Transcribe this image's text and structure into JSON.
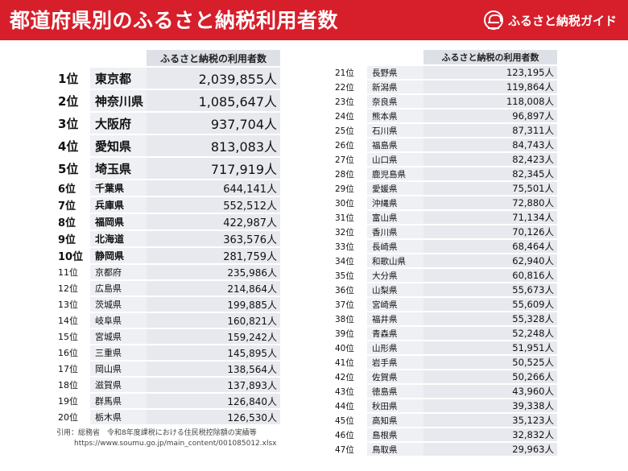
{
  "header": {
    "title": "都道府県別のふるさと納税利用者数",
    "brand": "ふるさと納税ガイド"
  },
  "table_left": {
    "column_header": "ふるさと納税の利用者数",
    "rows": [
      {
        "rank": "1位",
        "pref": "東京都",
        "value": "2,039,855人"
      },
      {
        "rank": "2位",
        "pref": "神奈川県",
        "value": "1,085,647人"
      },
      {
        "rank": "3位",
        "pref": "大阪府",
        "value": "937,704人"
      },
      {
        "rank": "4位",
        "pref": "愛知県",
        "value": "813,083人"
      },
      {
        "rank": "5位",
        "pref": "埼玉県",
        "value": "717,919人"
      },
      {
        "rank": "6位",
        "pref": "千葉県",
        "value": "644,141人"
      },
      {
        "rank": "7位",
        "pref": "兵庫県",
        "value": "552,512人"
      },
      {
        "rank": "8位",
        "pref": "福岡県",
        "value": "422,987人"
      },
      {
        "rank": "9位",
        "pref": "北海道",
        "value": "363,576人"
      },
      {
        "rank": "10位",
        "pref": "静岡県",
        "value": "281,759人"
      },
      {
        "rank": "11位",
        "pref": "京都府",
        "value": "235,986人"
      },
      {
        "rank": "12位",
        "pref": "広島県",
        "value": "214,864人"
      },
      {
        "rank": "13位",
        "pref": "茨城県",
        "value": "199,885人"
      },
      {
        "rank": "14位",
        "pref": "岐阜県",
        "value": "160,821人"
      },
      {
        "rank": "15位",
        "pref": "宮城県",
        "value": "159,242人"
      },
      {
        "rank": "16位",
        "pref": "三重県",
        "value": "145,895人"
      },
      {
        "rank": "17位",
        "pref": "岡山県",
        "value": "138,564人"
      },
      {
        "rank": "18位",
        "pref": "滋賀県",
        "value": "137,893人"
      },
      {
        "rank": "19位",
        "pref": "群馬県",
        "value": "126,840人"
      },
      {
        "rank": "20位",
        "pref": "栃木県",
        "value": "126,530人"
      }
    ]
  },
  "table_right": {
    "column_header": "ふるさと納税の利用者数",
    "rows": [
      {
        "rank": "21位",
        "pref": "長野県",
        "value": "123,195人"
      },
      {
        "rank": "22位",
        "pref": "新潟県",
        "value": "119,864人"
      },
      {
        "rank": "23位",
        "pref": "奈良県",
        "value": "118,008人"
      },
      {
        "rank": "24位",
        "pref": "熊本県",
        "value": "96,897人"
      },
      {
        "rank": "25位",
        "pref": "石川県",
        "value": "87,311人"
      },
      {
        "rank": "26位",
        "pref": "福島県",
        "value": "84,743人"
      },
      {
        "rank": "27位",
        "pref": "山口県",
        "value": "82,423人"
      },
      {
        "rank": "28位",
        "pref": "鹿児島県",
        "value": "82,345人"
      },
      {
        "rank": "29位",
        "pref": "愛媛県",
        "value": "75,501人"
      },
      {
        "rank": "30位",
        "pref": "沖縄県",
        "value": "72,880人"
      },
      {
        "rank": "31位",
        "pref": "富山県",
        "value": "71,134人"
      },
      {
        "rank": "32位",
        "pref": "香川県",
        "value": "70,126人"
      },
      {
        "rank": "33位",
        "pref": "長崎県",
        "value": "68,464人"
      },
      {
        "rank": "34位",
        "pref": "和歌山県",
        "value": "62,940人"
      },
      {
        "rank": "35位",
        "pref": "大分県",
        "value": "60,816人"
      },
      {
        "rank": "36位",
        "pref": "山梨県",
        "value": "55,673人"
      },
      {
        "rank": "37位",
        "pref": "宮崎県",
        "value": "55,609人"
      },
      {
        "rank": "38位",
        "pref": "福井県",
        "value": "55,328人"
      },
      {
        "rank": "39位",
        "pref": "青森県",
        "value": "52,248人"
      },
      {
        "rank": "40位",
        "pref": "山形県",
        "value": "51,951人"
      },
      {
        "rank": "41位",
        "pref": "岩手県",
        "value": "50,525人"
      },
      {
        "rank": "42位",
        "pref": "佐賀県",
        "value": "50,266人"
      },
      {
        "rank": "43位",
        "pref": "徳島県",
        "value": "43,960人"
      },
      {
        "rank": "44位",
        "pref": "秋田県",
        "value": "39,338人"
      },
      {
        "rank": "45位",
        "pref": "高知県",
        "value": "35,123人"
      },
      {
        "rank": "46位",
        "pref": "島根県",
        "value": "32,832人"
      },
      {
        "rank": "47位",
        "pref": "鳥取県",
        "value": "29,963人"
      }
    ]
  },
  "citation": {
    "line1": "引用：総務省　令和8年度課税における住民税控除額の実績等",
    "line2": "https://www.soumu.go.jp/main_content/001085012.xlsx"
  },
  "colors": {
    "header_red": "#d61f2b",
    "table_header_gray": "#dde0e6",
    "cell_gray": "#e7e9ee"
  }
}
